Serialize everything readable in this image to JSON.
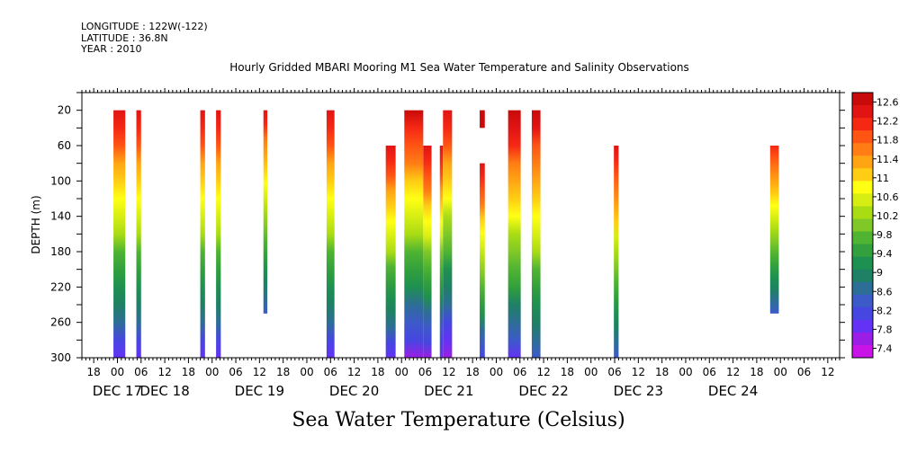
{
  "header": {
    "longitude": "LONGITUDE : 122W(-122)",
    "latitude": "LATITUDE : 36.8N",
    "year": "YEAR : 2010"
  },
  "chart_data": {
    "type": "heatmap",
    "title": "Hourly Gridded MBARI Mooring M1 Sea Water Temperature and Salinity Observations",
    "xlabel": "Sea Water Temperature (Celsius)",
    "ylabel": "DEPTH (m)",
    "x_hour_range": [
      -9,
      183
    ],
    "x_tick_labels": [
      "18",
      "00",
      "06",
      "12",
      "18",
      "00",
      "06",
      "12",
      "18",
      "00",
      "06",
      "12",
      "18",
      "00",
      "06",
      "12",
      "18",
      "00",
      "06",
      "12",
      "18",
      "00",
      "06",
      "12",
      "18",
      "00",
      "06",
      "12",
      "18",
      "00",
      "06",
      "12"
    ],
    "x_day_labels": [
      {
        "label": "DEC 17",
        "hour": 0
      },
      {
        "label": "DEC 18",
        "hour": 12
      },
      {
        "label": "DEC 19",
        "hour": 36
      },
      {
        "label": "DEC 20",
        "hour": 60
      },
      {
        "label": "DEC 21",
        "hour": 84
      },
      {
        "label": "DEC 22",
        "hour": 108
      },
      {
        "label": "DEC 23",
        "hour": 132
      },
      {
        "label": "DEC 24",
        "hour": 156
      }
    ],
    "ylim": [
      0,
      300
    ],
    "y_ticks": [
      20,
      60,
      100,
      140,
      180,
      220,
      260,
      300
    ],
    "colorbar": {
      "range": [
        7.2,
        12.8
      ],
      "labels": [
        "12.6",
        "12.2",
        "11.8",
        "11.4",
        "11",
        "10.6",
        "10.2",
        "9.8",
        "9.4",
        "9",
        "8.6",
        "8.2",
        "7.8",
        "7.4"
      ],
      "colors": [
        "#c80a0a",
        "#e11414",
        "#f52814",
        "#ff5514",
        "#ff7d14",
        "#ffa514",
        "#ffcd14",
        "#ffff14",
        "#d7ee14",
        "#aadc14",
        "#80c828",
        "#50b432",
        "#32a03c",
        "#1e9050",
        "#1e8064",
        "#2d6e96",
        "#3c5ac8",
        "#4646e1",
        "#6432f5",
        "#9b1ee6",
        "#c814e6"
      ]
    },
    "series": [
      {
        "hour_start": -1,
        "hour_end": 2,
        "depth_top": 20,
        "depth_bottom": 300,
        "temp_top": 12.4,
        "temp_bottom": 7.9
      },
      {
        "hour_start": 4.8,
        "hour_end": 6,
        "depth_top": 20,
        "depth_bottom": 300,
        "temp_top": 12.4,
        "temp_bottom": 7.9
      },
      {
        "hour_start": 21,
        "hour_end": 22.2,
        "depth_top": 20,
        "depth_bottom": 300,
        "temp_top": 12.4,
        "temp_bottom": 7.9
      },
      {
        "hour_start": 25,
        "hour_end": 26.2,
        "depth_top": 20,
        "depth_bottom": 300,
        "temp_top": 12.4,
        "temp_bottom": 7.9
      },
      {
        "hour_start": 37,
        "hour_end": 38,
        "depth_top": 20,
        "depth_bottom": 250,
        "temp_top": 12.3,
        "temp_bottom": 8.3
      },
      {
        "hour_start": 53,
        "hour_end": 55,
        "depth_top": 20,
        "depth_bottom": 300,
        "temp_top": 12.4,
        "temp_bottom": 7.9
      },
      {
        "hour_start": 68,
        "hour_end": 70.5,
        "depth_top": 60,
        "depth_bottom": 300,
        "temp_top": 12.4,
        "temp_bottom": 7.9
      },
      {
        "hour_start": 72.7,
        "hour_end": 77.5,
        "depth_top": 20,
        "depth_bottom": 300,
        "temp_top": 12.6,
        "temp_bottom": 7.7
      },
      {
        "hour_start": 77.5,
        "hour_end": 79.6,
        "depth_top": 60,
        "depth_bottom": 300,
        "temp_top": 12.5,
        "temp_bottom": 7.7
      },
      {
        "hour_start": 81.7,
        "hour_end": 82.5,
        "depth_top": 60,
        "depth_bottom": 300,
        "temp_top": 12.4,
        "temp_bottom": 7.8
      },
      {
        "hour_start": 82.5,
        "hour_end": 84.8,
        "depth_top": 20,
        "depth_bottom": 300,
        "temp_top": 12.5,
        "temp_bottom": 7.5
      },
      {
        "hour_start": 91.8,
        "hour_end": 93.1,
        "depth_top": 20,
        "depth_bottom": 40,
        "temp_top": 12.7,
        "temp_bottom": 12.6
      },
      {
        "hour_start": 91.8,
        "hour_end": 93.1,
        "depth_top": 80,
        "depth_bottom": 300,
        "temp_top": 12.4,
        "temp_bottom": 8.2
      },
      {
        "hour_start": 99,
        "hour_end": 102.2,
        "depth_top": 20,
        "depth_bottom": 300,
        "temp_top": 12.7,
        "temp_bottom": 8.0
      },
      {
        "hour_start": 105,
        "hour_end": 107.2,
        "depth_top": 20,
        "depth_bottom": 300,
        "temp_top": 12.6,
        "temp_bottom": 8.3
      },
      {
        "hour_start": 125.8,
        "hour_end": 127,
        "depth_top": 60,
        "depth_bottom": 300,
        "temp_top": 12.4,
        "temp_bottom": 8.3
      },
      {
        "hour_start": 165.4,
        "hour_end": 167.6,
        "depth_top": 60,
        "depth_bottom": 250,
        "temp_top": 12.2,
        "temp_bottom": 8.3
      }
    ]
  }
}
